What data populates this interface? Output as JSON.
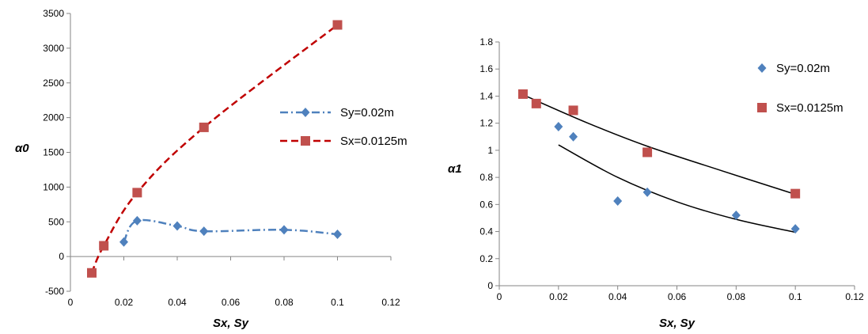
{
  "chart_data": [
    {
      "type": "line",
      "xlabel": "Sx, Sy",
      "ylabel": "α0",
      "xlim": [
        0,
        0.12
      ],
      "ylim": [
        -500,
        3500
      ],
      "x_ticks": [
        "0",
        "0.02",
        "0.04",
        "0.06",
        "0.08",
        "0.1",
        "0.12"
      ],
      "y_ticks": [
        "-500",
        "0",
        "500",
        "1000",
        "1500",
        "2000",
        "2500",
        "3000",
        "3500"
      ],
      "grid": false,
      "legend_position": "right",
      "series": [
        {
          "name": "Sy=0.02m",
          "marker": "diamond",
          "line": "dash-dot",
          "color": "#4F81BD",
          "points": [
            [
              0.02,
              210
            ],
            [
              0.025,
              515
            ],
            [
              0.04,
              440
            ],
            [
              0.05,
              365
            ],
            [
              0.08,
              385
            ],
            [
              0.1,
              320
            ]
          ]
        },
        {
          "name": "Sx=0.0125m",
          "marker": "square",
          "line": "dashed",
          "color": "#C0504D",
          "line_color": "#C00000",
          "points": [
            [
              0.008,
              -235
            ],
            [
              0.0125,
              155
            ],
            [
              0.025,
              920
            ],
            [
              0.05,
              1860
            ],
            [
              0.1,
              3335
            ]
          ]
        }
      ]
    },
    {
      "type": "scatter",
      "xlabel": "Sx, Sy",
      "ylabel": "α1",
      "xlim": [
        0,
        0.12
      ],
      "ylim": [
        0,
        1.8
      ],
      "x_ticks": [
        "0",
        "0.02",
        "0.04",
        "0.06",
        "0.08",
        "0.1",
        "0.12"
      ],
      "y_ticks": [
        "0",
        "0.2",
        "0.4",
        "0.6",
        "0.8",
        "1",
        "1.2",
        "1.4",
        "1.6",
        "1.8"
      ],
      "grid": false,
      "legend_position": "top-right",
      "series": [
        {
          "name": "Sy=0.02m",
          "marker": "diamond",
          "color": "#4F81BD",
          "points": [
            [
              0.02,
              1.175
            ],
            [
              0.025,
              1.1
            ],
            [
              0.04,
              0.625
            ],
            [
              0.05,
              0.69
            ],
            [
              0.08,
              0.52
            ],
            [
              0.1,
              0.42
            ]
          ],
          "trendline": [
            [
              0.02,
              1.04
            ],
            [
              0.04,
              0.8
            ],
            [
              0.06,
              0.62
            ],
            [
              0.08,
              0.49
            ],
            [
              0.1,
              0.395
            ]
          ]
        },
        {
          "name": "Sx=0.0125m",
          "marker": "square",
          "color": "#C0504D",
          "points": [
            [
              0.008,
              1.415
            ],
            [
              0.0125,
              1.345
            ],
            [
              0.025,
              1.295
            ],
            [
              0.05,
              0.985
            ],
            [
              0.1,
              0.68
            ]
          ],
          "trendline": [
            [
              0.008,
              1.41
            ],
            [
              0.03,
              1.2
            ],
            [
              0.05,
              1.03
            ],
            [
              0.075,
              0.85
            ],
            [
              0.1,
              0.675
            ]
          ]
        }
      ]
    }
  ]
}
